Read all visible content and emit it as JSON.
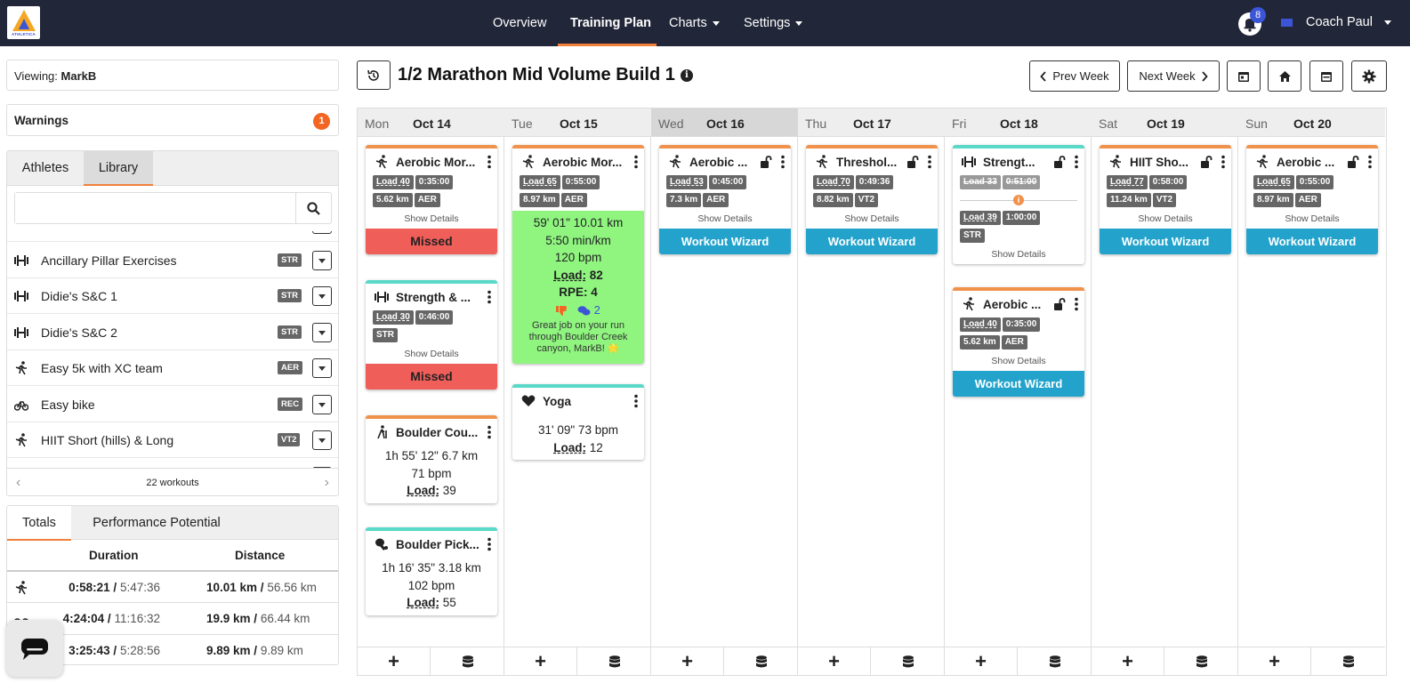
{
  "nav": {
    "logo_text": "ATHLETICA",
    "items": [
      "Overview",
      "Training Plan",
      "Charts",
      "Settings"
    ],
    "notifications": "8",
    "user": "Coach Paul"
  },
  "sidebar": {
    "viewing_label": "Viewing:",
    "viewing_user": "MarkB",
    "warnings_label": "Warnings",
    "warnings_count": "1",
    "tabs": [
      "Athletes",
      "Library"
    ],
    "search_placeholder": "",
    "library": [
      {
        "name": "Ancillary Pillar Exercises",
        "tag": "STR",
        "icon": "dumbbell-icon"
      },
      {
        "name": "Didie's S&C 1",
        "tag": "STR",
        "icon": "dumbbell-icon"
      },
      {
        "name": "Didie's S&C 2",
        "tag": "STR",
        "icon": "dumbbell-icon"
      },
      {
        "name": "Easy 5k with XC team",
        "tag": "AER",
        "icon": "run-icon"
      },
      {
        "name": "Easy bike",
        "tag": "REC",
        "icon": "bike-icon"
      },
      {
        "name": "HIIT Short (hills) & Long",
        "tag": "VT2",
        "icon": "run-icon"
      }
    ],
    "workouts_count": "22 workouts",
    "totals_tabs": [
      "Totals",
      "Performance Potential"
    ],
    "totals_headers": [
      "Duration",
      "Distance"
    ],
    "totals_rows": [
      {
        "icon": "run-icon",
        "dur": "0:58:21 /",
        "dur_total": "5:47:36",
        "dist": "10.01 km /",
        "dist_total": "56.56 km"
      },
      {
        "icon": "bike-icon",
        "dur": "4:24:04 /",
        "dur_total": "11:16:32",
        "dist": "19.9 km /",
        "dist_total": "66.44 km"
      },
      {
        "icon": "swim-icon",
        "dur": "3:25:43 /",
        "dur_total": "5:28:56",
        "dist": "9.89 km /",
        "dist_total": "9.89 km"
      }
    ]
  },
  "plan": {
    "title": "1/2 Marathon Mid Volume Build 1",
    "prev_week": "Prev Week",
    "next_week": "Next Week",
    "days": [
      {
        "dow": "Mon",
        "date": "Oct 14"
      },
      {
        "dow": "Tue",
        "date": "Oct 15"
      },
      {
        "dow": "Wed",
        "date": "Oct 16"
      },
      {
        "dow": "Thu",
        "date": "Oct 17"
      },
      {
        "dow": "Fri",
        "date": "Oct 18"
      },
      {
        "dow": "Sat",
        "date": "Oct 19"
      },
      {
        "dow": "Sun",
        "date": "Oct 20"
      }
    ],
    "cards": {
      "mon1": {
        "title": "Aerobic Mor...",
        "load": "Load 40",
        "time": "0:35:00",
        "dist": "5.62 km",
        "tag": "AER",
        "details": "Show Details",
        "status": "Missed"
      },
      "mon2": {
        "title": "Strength & ...",
        "load": "Load 30",
        "time": "0:46:00",
        "tag": "STR",
        "details": "Show Details",
        "status": "Missed"
      },
      "mon3": {
        "title": "Boulder Cou...",
        "line1": "1h 55' 12\"  6.7 km",
        "line2": "71 bpm",
        "load_label": "Load:",
        "load_val": "39"
      },
      "mon4": {
        "title": "Boulder Pick...",
        "line1": "1h 16' 35\"  3.18 km",
        "line2": "102 bpm",
        "load_label": "Load:",
        "load_val": "55"
      },
      "tue1": {
        "title": "Aerobic Mor...",
        "load": "Load 65",
        "time": "0:55:00",
        "dist": "8.97 km",
        "tag": "AER",
        "line1": "59' 01\"  10.01 km",
        "line2": "5:50 min/km",
        "line3": "120 bpm",
        "load_label": "Load:",
        "load_val": "82",
        "rpe_label": "RPE:",
        "rpe_val": "4",
        "comments": "2",
        "comment": "Great job on your run through Boulder Creek canyon, MarkB! 🌟"
      },
      "tue2": {
        "title": "Yoga",
        "line1": "31' 09\"  73 bpm",
        "load_label": "Load:",
        "load_val": "12"
      },
      "wed1": {
        "title": "Aerobic ...",
        "load": "Load 53",
        "time": "0:45:00",
        "dist": "7.3 km",
        "tag": "AER",
        "details": "Show Details",
        "action": "Workout Wizard"
      },
      "thu1": {
        "title": "Threshol...",
        "load": "Load 70",
        "time": "0:49:36",
        "dist": "8.82 km",
        "tag": "VT2",
        "details": "Show Details",
        "action": "Workout Wizard"
      },
      "fri1": {
        "title": "Strengt...",
        "load_old": "Load 33",
        "time_old": "0:51:00",
        "load": "Load 39",
        "time": "1:00:00",
        "tag": "STR",
        "details": "Show Details"
      },
      "fri2": {
        "title": "Aerobic ...",
        "load": "Load 40",
        "time": "0:35:00",
        "dist": "5.62 km",
        "tag": "AER",
        "details": "Show Details",
        "action": "Workout Wizard"
      },
      "sat1": {
        "title": "HIIT Sho...",
        "load": "Load 77",
        "time": "0:58:00",
        "dist": "11.24 km",
        "tag": "VT2",
        "details": "Show Details",
        "action": "Workout Wizard"
      },
      "sun1": {
        "title": "Aerobic ...",
        "load": "Load 65",
        "time": "0:55:00",
        "dist": "8.97 km",
        "tag": "AER",
        "details": "Show Details",
        "action": "Workout Wizard"
      }
    }
  },
  "colors": {
    "accent": "#f0803c",
    "nav_bg": "#212638",
    "missed": "#f05e5a",
    "wizard": "#23a3cc",
    "completed": "#8ff57f"
  }
}
